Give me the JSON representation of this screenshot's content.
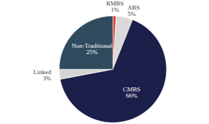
{
  "chart_data": {
    "type": "pie",
    "categories": [
      "RMBS",
      "ABS",
      "CMBS",
      "Linked",
      "Non-Traditional"
    ],
    "values": [
      1,
      5,
      66,
      3,
      25
    ],
    "value_labels": [
      "1%",
      "5%",
      "66%",
      "3%",
      "25%"
    ],
    "colors": [
      "#e5443a",
      "#d9d9d9",
      "#1c1f4a",
      "#d4d4d4",
      "#2f4b5d"
    ],
    "data_labels": true
  }
}
